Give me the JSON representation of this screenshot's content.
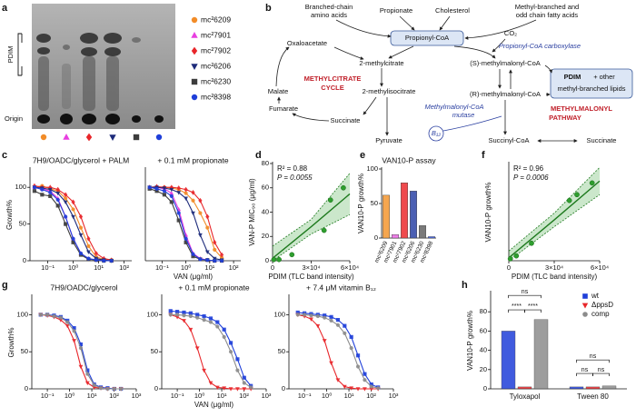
{
  "panel_letters": [
    "a",
    "b",
    "c",
    "d",
    "e",
    "f",
    "g",
    "h"
  ],
  "tlc": {
    "label": "PDIM",
    "origin": "Origin",
    "legend": [
      {
        "name": "mc²6209",
        "color": "#f28c28",
        "marker": "circle"
      },
      {
        "name": "mc²7901",
        "color": "#e83ee0",
        "marker": "triangle"
      },
      {
        "name": "mc²7902",
        "color": "#e8262a",
        "marker": "diamond"
      },
      {
        "name": "mc²6206",
        "color": "#1c2a7a",
        "marker": "tri-down"
      },
      {
        "name": "mc²6230",
        "color": "#3c3c3c",
        "marker": "square"
      },
      {
        "name": "mc²8398",
        "color": "#1f3fd9",
        "marker": "circle"
      }
    ]
  },
  "pathway": {
    "texts": [
      "Branched-chain",
      "amino acids",
      "Propionate",
      "Cholesterol",
      "Methyl-branched and",
      "odd chain fatty acids",
      "Propionyl-CoA",
      "CO₂",
      "Propionyl-CoA carboxylase",
      "Oxaloacetate",
      "2-methylcitrate",
      "(S)-methylmalonyl-CoA",
      "PDIM",
      "+ other",
      "methyl-branched lipids",
      "Malate",
      "METHYLCITRATE",
      "CYCLE",
      "2-methylisocitrate",
      "(R)-methylmalonyl-CoA",
      "Fumarate",
      "Succinate",
      "Methylmalonyl-CoA",
      "mutase",
      "METHYLMALONYL",
      "PATHWAY",
      "B₁₂",
      "Pyruvate",
      "Succinyl-CoA",
      "Succinate"
    ]
  },
  "chart_data": [
    {
      "type": "line",
      "title": "7H9/OADC/glycerol + PALM",
      "ylabel": "Growth%",
      "xlog": true,
      "x": [
        0.03,
        0.06,
        0.125,
        0.25,
        0.5,
        1,
        2,
        4,
        8,
        16,
        32
      ],
      "xlim": [
        0.02,
        200
      ],
      "xticks": [
        {
          "value": 0.1,
          "label": "10⁻¹"
        },
        {
          "value": 1,
          "label": "10⁰"
        },
        {
          "value": 10,
          "label": "10¹"
        },
        {
          "value": 100,
          "label": "10²"
        }
      ],
      "ylim": [
        0,
        125
      ],
      "yticks": [
        0,
        50,
        100
      ],
      "series": [
        {
          "color": "#f28c28",
          "marker": "circle",
          "values": [
            100,
            102,
            98,
            95,
            85,
            70,
            45,
            20,
            5,
            2,
            1
          ]
        },
        {
          "color": "#e83ee0",
          "marker": "triangle",
          "values": [
            100,
            98,
            95,
            85,
            60,
            30,
            10,
            3,
            1,
            1,
            0
          ]
        },
        {
          "color": "#e8262a",
          "marker": "diamond",
          "values": [
            102,
            100,
            100,
            97,
            90,
            80,
            60,
            30,
            10,
            3,
            1
          ]
        },
        {
          "color": "#1c2a7a",
          "marker": "tri-down",
          "values": [
            100,
            99,
            97,
            92,
            80,
            60,
            35,
            12,
            3,
            1,
            0
          ]
        },
        {
          "color": "#3c3c3c",
          "marker": "square",
          "values": [
            95,
            90,
            88,
            75,
            50,
            25,
            8,
            2,
            1,
            0,
            0
          ]
        },
        {
          "color": "#1f3fd9",
          "marker": "circle",
          "values": [
            100,
            97,
            93,
            83,
            60,
            30,
            10,
            3,
            1,
            0,
            0
          ]
        }
      ]
    },
    {
      "type": "line",
      "title": "+ 0.1 mM propionate",
      "xlabel": "VAN (μg/ml)",
      "xlog": true,
      "x": [
        0.03,
        0.06,
        0.125,
        0.25,
        0.5,
        1,
        2,
        4,
        8,
        16,
        32
      ],
      "xlim": [
        0.02,
        200
      ],
      "xticks": [
        {
          "value": 0.1,
          "label": "10⁻¹"
        },
        {
          "value": 1,
          "label": "10⁰"
        },
        {
          "value": 10,
          "label": "10¹"
        },
        {
          "value": 100,
          "label": "10²"
        }
      ],
      "ylim": [
        0,
        125
      ],
      "series": [
        {
          "color": "#f28c28",
          "marker": "circle",
          "values": [
            100,
            100,
            100,
            99,
            97,
            92,
            82,
            65,
            45,
            15,
            4
          ]
        },
        {
          "color": "#e83ee0",
          "marker": "triangle",
          "values": [
            100,
            100,
            98,
            92,
            70,
            35,
            10,
            3,
            1,
            0,
            0
          ]
        },
        {
          "color": "#e8262a",
          "marker": "diamond",
          "values": [
            100,
            101,
            100,
            100,
            99,
            97,
            93,
            82,
            60,
            25,
            8
          ]
        },
        {
          "color": "#1c2a7a",
          "marker": "tri-down",
          "values": [
            100,
            100,
            99,
            97,
            93,
            85,
            65,
            35,
            12,
            3,
            1
          ]
        },
        {
          "color": "#3c3c3c",
          "marker": "square",
          "values": [
            98,
            95,
            90,
            80,
            55,
            25,
            6,
            2,
            1,
            0,
            0
          ]
        },
        {
          "color": "#1f3fd9",
          "marker": "circle",
          "values": [
            100,
            98,
            95,
            88,
            65,
            30,
            9,
            2,
            1,
            0,
            0
          ]
        }
      ]
    },
    {
      "type": "scatter",
      "xlabel": "PDIM (TLC band intensity)",
      "ylabel": "VAN-P MIC₉₀ (μg/ml)",
      "annotations": [
        "R² = 0.88",
        "P = 0.0055"
      ],
      "color": "#2e9e2e",
      "x": [
        1000,
        5000,
        15000,
        40000,
        45000,
        55000
      ],
      "values": [
        1,
        1,
        5,
        25,
        50,
        60
      ],
      "fit": {
        "color": "#1e7a1e",
        "x": [
          0,
          30000,
          60000
        ],
        "values": [
          2,
          28,
          55
        ],
        "lower": [
          0,
          22,
          38
        ],
        "upper": [
          12,
          34,
          72
        ]
      },
      "xlim": [
        0,
        60000
      ],
      "xticks": [
        0,
        {
          "value": 30000,
          "label": "3×10⁴"
        },
        {
          "value": 60000,
          "label": "6×10⁴"
        }
      ],
      "ylim": [
        0,
        80
      ],
      "yticks": [
        0,
        20,
        40,
        60,
        80
      ]
    },
    {
      "type": "bar",
      "title": "VAN10-P assay",
      "ylabel": "VAN10-P growth%",
      "categories": [
        "mc²6209",
        "mc²7901",
        "mc²7902",
        "mc²6206",
        "mc²6230",
        "mc²8398"
      ],
      "values": [
        62,
        5,
        80,
        68,
        18,
        2
      ],
      "colors": [
        "#f5a64f",
        "#ef7fe9",
        "#ef4a4d",
        "#4b5fb3",
        "#7a7a7a",
        "#4f6ff0"
      ],
      "ylim": [
        0,
        100
      ],
      "yticks": [
        0,
        50,
        100
      ]
    },
    {
      "type": "scatter",
      "xlabel": "PDIM (TLC band intensity)",
      "ylabel": "VAN10-P growth%",
      "annotations": [
        "R² = 0.96",
        "P = 0.0006"
      ],
      "color": "#2e9e2e",
      "x": [
        1000,
        5000,
        15000,
        40000,
        45000,
        55000
      ],
      "values": [
        2,
        5,
        18,
        62,
        68,
        80
      ],
      "fit": {
        "color": "#1e7a1e",
        "x": [
          0,
          30000,
          60000
        ],
        "values": [
          3,
          42,
          82
        ],
        "lower": [
          0,
          35,
          68
        ],
        "upper": [
          10,
          49,
          96
        ]
      },
      "xlim": [
        0,
        60000
      ],
      "xticks": [
        0,
        {
          "value": 30000,
          "label": "3×10⁴"
        },
        {
          "value": 60000,
          "label": "6×10⁴"
        }
      ],
      "ylim": [
        0,
        100
      ]
    },
    {
      "type": "line",
      "title": "7H9/OADC/glycerol",
      "ylabel": "Growth%",
      "xlog": true,
      "x": [
        0.05,
        0.1,
        0.2,
        0.4,
        0.8,
        1.6,
        3.2,
        6.4,
        12.8,
        25.6,
        51.2,
        102.4,
        204.8
      ],
      "xlim": [
        0.02,
        1000
      ],
      "xticks": [
        {
          "value": 0.1,
          "label": "10⁻¹"
        },
        {
          "value": 1,
          "label": "10⁰"
        },
        {
          "value": 10,
          "label": "10¹"
        },
        {
          "value": 100,
          "label": "10²"
        },
        {
          "value": 1000,
          "label": "10³"
        }
      ],
      "ylim": [
        0,
        125
      ],
      "yticks": [
        0,
        50,
        100
      ],
      "series": [
        {
          "color": "#1f3fd9",
          "marker": "square",
          "values": [
            100,
            100,
            99,
            97,
            92,
            82,
            60,
            25,
            6,
            2,
            1,
            0,
            0
          ]
        },
        {
          "color": "#e8262a",
          "marker": "tri-down",
          "values": [
            100,
            99,
            97,
            93,
            85,
            65,
            30,
            8,
            2,
            1,
            0,
            0,
            0
          ]
        },
        {
          "color": "#8c8c8c",
          "marker": "circle",
          "values": [
            100,
            100,
            98,
            96,
            90,
            78,
            55,
            20,
            5,
            1,
            0,
            0,
            0
          ]
        }
      ]
    },
    {
      "type": "line",
      "title": "+ 0.1 mM propionate",
      "xlabel": "VAN (μg/ml)",
      "xlog": true,
      "x": [
        0.05,
        0.1,
        0.2,
        0.4,
        0.8,
        1.6,
        3.2,
        6.4,
        12.8,
        25.6,
        51.2,
        102.4,
        204.8
      ],
      "xlim": [
        0.02,
        1000
      ],
      "xticks": [
        {
          "value": 0.1,
          "label": "10⁻¹"
        },
        {
          "value": 1,
          "label": "10⁰"
        },
        {
          "value": 10,
          "label": "10¹"
        },
        {
          "value": 100,
          "label": "10²"
        },
        {
          "value": 1000,
          "label": "10³"
        }
      ],
      "ylim": [
        0,
        125
      ],
      "yticks": [
        0,
        50,
        100
      ],
      "series": [
        {
          "color": "#1f3fd9",
          "marker": "square",
          "values": [
            105,
            104,
            103,
            102,
            100,
            98,
            95,
            90,
            80,
            62,
            40,
            15,
            4
          ]
        },
        {
          "color": "#e8262a",
          "marker": "tri-down",
          "values": [
            100,
            97,
            92,
            80,
            55,
            25,
            8,
            2,
            1,
            0,
            0,
            0,
            0
          ]
        },
        {
          "color": "#8c8c8c",
          "marker": "circle",
          "values": [
            100,
            100,
            99,
            98,
            96,
            93,
            90,
            84,
            70,
            50,
            25,
            8,
            2
          ]
        }
      ]
    },
    {
      "type": "line",
      "title": "+ 7.4 μM vitamin B₁₂",
      "xlog": true,
      "x": [
        0.05,
        0.1,
        0.2,
        0.4,
        0.8,
        1.6,
        3.2,
        6.4,
        12.8,
        25.6,
        51.2,
        102.4,
        204.8
      ],
      "xlim": [
        0.02,
        1000
      ],
      "xticks": [
        {
          "value": 0.1,
          "label": "10⁻¹"
        },
        {
          "value": 1,
          "label": "10⁰"
        },
        {
          "value": 10,
          "label": "10¹"
        },
        {
          "value": 100,
          "label": "10²"
        },
        {
          "value": 1000,
          "label": "10³"
        }
      ],
      "ylim": [
        0,
        125
      ],
      "yticks": [
        0,
        50,
        100
      ],
      "series": [
        {
          "color": "#1f3fd9",
          "marker": "square",
          "values": [
            103,
            102,
            101,
            100,
            99,
            97,
            93,
            85,
            70,
            45,
            20,
            6,
            2
          ]
        },
        {
          "color": "#e8262a",
          "marker": "tri-down",
          "values": [
            100,
            98,
            94,
            85,
            65,
            35,
            12,
            3,
            1,
            0,
            0,
            0,
            0
          ]
        },
        {
          "color": "#8c8c8c",
          "marker": "circle",
          "values": [
            100,
            100,
            99,
            98,
            96,
            92,
            86,
            75,
            55,
            30,
            12,
            3,
            1
          ]
        }
      ]
    },
    {
      "type": "grouped-bar",
      "ylabel": "VAN10-P growth%",
      "legend": "top-right",
      "categories": [
        "Tyloxapol",
        "Tween 80"
      ],
      "series": [
        {
          "name": "wt",
          "color": "#1f3fd9",
          "marker": "square",
          "values": [
            60,
            2
          ]
        },
        {
          "name": "ΔppsD",
          "color": "#e8262a",
          "marker": "tri-down",
          "values": [
            2,
            2
          ]
        },
        {
          "name": "comp",
          "color": "#8c8c8c",
          "marker": "circle",
          "values": [
            72,
            3
          ]
        }
      ],
      "annotations": [
        "ns",
        "****",
        "****",
        "ns",
        "ns",
        "ns"
      ],
      "ylim": [
        0,
        100
      ],
      "yticks": [
        0,
        20,
        40,
        60,
        80
      ]
    }
  ]
}
